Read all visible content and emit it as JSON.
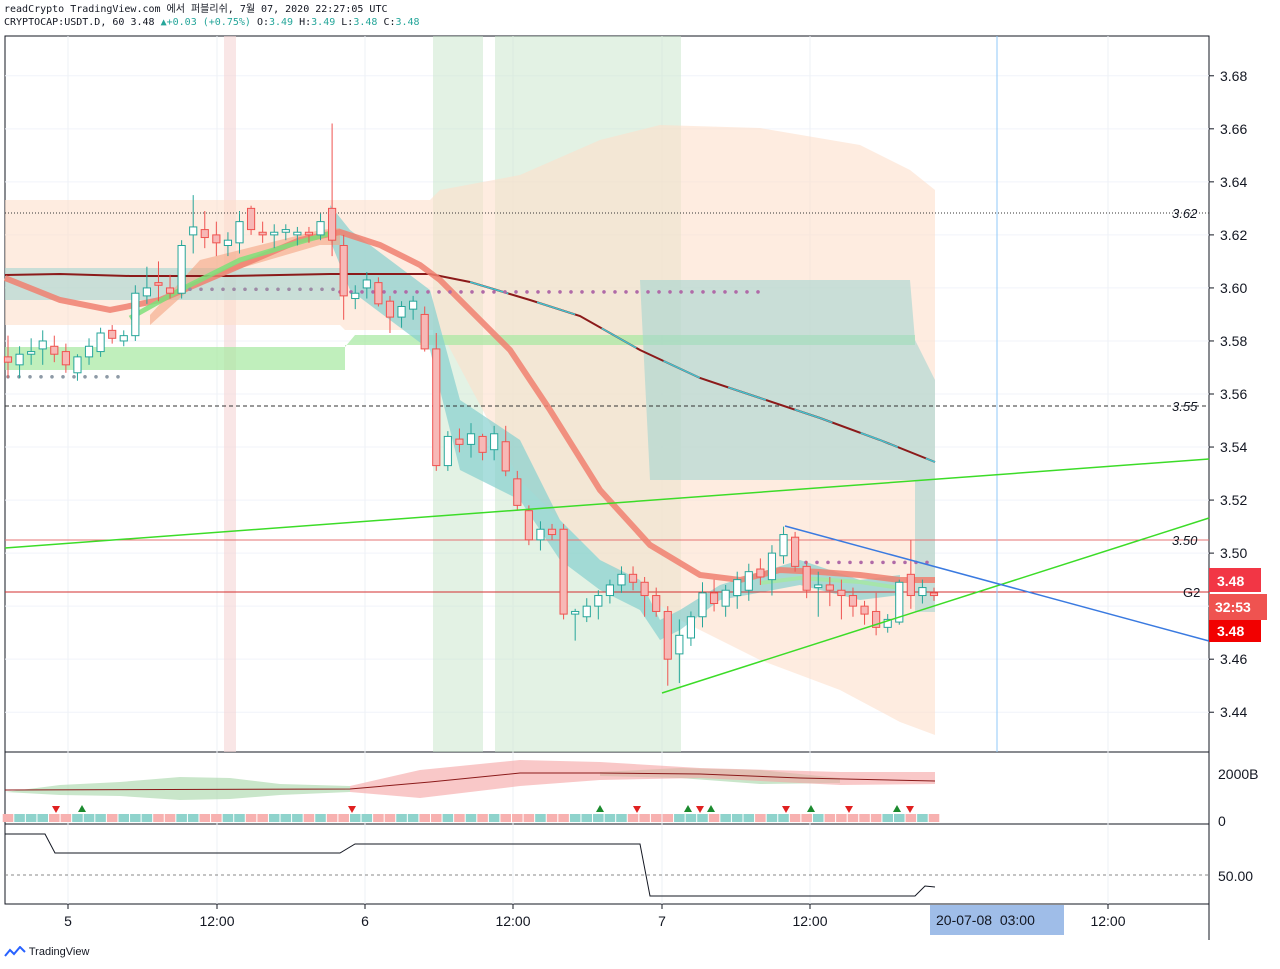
{
  "header": {
    "line1": "readCrypto TradingView.com 에서 퍼블리쉬, 7월 07, 2020 22:27:05 UTC",
    "symbol": "CRYPTOCAP:USDT.D, 60",
    "last": "3.48",
    "change": "+0.03 (+0.75%)",
    "o_label": "O:",
    "o": "3.49",
    "h_label": "H:",
    "h": "3.49",
    "l_label": "L:",
    "l": "3.48",
    "c_label": "C:",
    "c": "3.48"
  },
  "colors": {
    "up": "#26a69a",
    "down": "#ef5350",
    "tag_red": "#f23645",
    "trend_green": "#3cdc28",
    "trend_blue": "#3a7ae0",
    "time_highlight": "#9fbde8"
  },
  "chart_data": {
    "type": "candlestick",
    "price_axis": {
      "ylim": [
        3.425,
        3.695
      ],
      "ticks": [
        "3.68",
        "3.66",
        "3.64",
        "3.62",
        "3.60",
        "3.58",
        "3.56",
        "3.54",
        "3.52",
        "3.50",
        "3.48",
        "3.46",
        "3.44"
      ]
    },
    "time_axis": {
      "ticks": [
        "5",
        "12:00",
        "6",
        "12:00",
        "7",
        "12:00",
        "12:00"
      ],
      "highlight": "20-07-08  03:00"
    },
    "level_labels": {
      "l1": "3.62",
      "l2": "3.55",
      "l3": "3.50",
      "g2": "G2"
    },
    "price_tags": {
      "tag_top": "3.48",
      "countdown": "32:53",
      "tag_bottom": "3.48"
    },
    "candles": [
      [
        3.574,
        3.582,
        3.566,
        3.572
      ],
      [
        3.571,
        3.578,
        3.566,
        3.575
      ],
      [
        3.575,
        3.581,
        3.571,
        3.576
      ],
      [
        3.577,
        3.584,
        3.571,
        3.58
      ],
      [
        3.578,
        3.582,
        3.572,
        3.575
      ],
      [
        3.576,
        3.579,
        3.568,
        3.571
      ],
      [
        3.568,
        3.575,
        3.565,
        3.574
      ],
      [
        3.574,
        3.581,
        3.571,
        3.578
      ],
      [
        3.576,
        3.585,
        3.574,
        3.583
      ],
      [
        3.584,
        3.586,
        3.579,
        3.581
      ],
      [
        3.58,
        3.584,
        3.578,
        3.582
      ],
      [
        3.582,
        3.601,
        3.58,
        3.598
      ],
      [
        3.597,
        3.608,
        3.594,
        3.6
      ],
      [
        3.602,
        3.61,
        3.595,
        3.601
      ],
      [
        3.6,
        3.605,
        3.596,
        3.598
      ],
      [
        3.598,
        3.618,
        3.596,
        3.616
      ],
      [
        3.62,
        3.635,
        3.613,
        3.623
      ],
      [
        3.622,
        3.629,
        3.615,
        3.619
      ],
      [
        3.62,
        3.625,
        3.612,
        3.617
      ],
      [
        3.616,
        3.621,
        3.612,
        3.618
      ],
      [
        3.617,
        3.629,
        3.613,
        3.625
      ],
      [
        3.63,
        3.631,
        3.62,
        3.622
      ],
      [
        3.621,
        3.625,
        3.617,
        3.62
      ],
      [
        3.62,
        3.624,
        3.615,
        3.621
      ],
      [
        3.621,
        3.624,
        3.618,
        3.622
      ],
      [
        3.62,
        3.623,
        3.616,
        3.621
      ],
      [
        3.621,
        3.623,
        3.617,
        3.62
      ],
      [
        3.62,
        3.628,
        3.618,
        3.625
      ],
      [
        3.63,
        3.662,
        3.612,
        3.618
      ],
      [
        3.616,
        3.62,
        3.588,
        3.597
      ],
      [
        3.596,
        3.601,
        3.592,
        3.598
      ],
      [
        3.6,
        3.606,
        3.596,
        3.603
      ],
      [
        3.602,
        3.604,
        3.593,
        3.594
      ],
      [
        3.595,
        3.597,
        3.583,
        3.589
      ],
      [
        3.589,
        3.595,
        3.585,
        3.593
      ],
      [
        3.592,
        3.597,
        3.588,
        3.595
      ],
      [
        3.59,
        3.593,
        3.576,
        3.577
      ],
      [
        3.577,
        3.583,
        3.531,
        3.533
      ],
      [
        3.533,
        3.546,
        3.531,
        3.544
      ],
      [
        3.543,
        3.547,
        3.538,
        3.541
      ],
      [
        3.541,
        3.549,
        3.536,
        3.545
      ],
      [
        3.544,
        3.545,
        3.535,
        3.538
      ],
      [
        3.539,
        3.548,
        3.535,
        3.545
      ],
      [
        3.542,
        3.548,
        3.529,
        3.531
      ],
      [
        3.528,
        3.531,
        3.516,
        3.518
      ],
      [
        3.516,
        3.518,
        3.503,
        3.505
      ],
      [
        3.505,
        3.512,
        3.501,
        3.509
      ],
      [
        3.509,
        3.511,
        3.505,
        3.507
      ],
      [
        3.509,
        3.511,
        3.475,
        3.477
      ],
      [
        3.477,
        3.479,
        3.467,
        3.478
      ],
      [
        3.476,
        3.483,
        3.474,
        3.48
      ],
      [
        3.48,
        3.486,
        3.475,
        3.484
      ],
      [
        3.484,
        3.49,
        3.481,
        3.488
      ],
      [
        3.488,
        3.495,
        3.485,
        3.492
      ],
      [
        3.492,
        3.495,
        3.486,
        3.489
      ],
      [
        3.489,
        3.491,
        3.476,
        3.484
      ],
      [
        3.484,
        3.487,
        3.476,
        3.478
      ],
      [
        3.478,
        3.48,
        3.45,
        3.46
      ],
      [
        3.462,
        3.475,
        3.451,
        3.469
      ],
      [
        3.468,
        3.478,
        3.465,
        3.476
      ],
      [
        3.476,
        3.489,
        3.472,
        3.485
      ],
      [
        3.485,
        3.49,
        3.478,
        3.481
      ],
      [
        3.48,
        3.488,
        3.476,
        3.486
      ],
      [
        3.484,
        3.493,
        3.479,
        3.49
      ],
      [
        3.486,
        3.496,
        3.482,
        3.493
      ],
      [
        3.494,
        3.498,
        3.488,
        3.491
      ],
      [
        3.49,
        3.503,
        3.484,
        3.5
      ],
      [
        3.499,
        3.51,
        3.496,
        3.507
      ],
      [
        3.506,
        3.508,
        3.493,
        3.495
      ],
      [
        3.495,
        3.497,
        3.483,
        3.486
      ],
      [
        3.487,
        3.493,
        3.476,
        3.488
      ],
      [
        3.488,
        3.491,
        3.48,
        3.486
      ],
      [
        3.486,
        3.49,
        3.475,
        3.484
      ],
      [
        3.484,
        3.487,
        3.476,
        3.48
      ],
      [
        3.48,
        3.482,
        3.473,
        3.477
      ],
      [
        3.478,
        3.485,
        3.469,
        3.472
      ],
      [
        3.472,
        3.477,
        3.47,
        3.475
      ],
      [
        3.474,
        3.49,
        3.473,
        3.489
      ],
      [
        3.492,
        3.505,
        3.479,
        3.484
      ],
      [
        3.484,
        3.49,
        3.481,
        3.487
      ],
      [
        3.485,
        3.487,
        3.482,
        3.484
      ]
    ],
    "indicators": {
      "pane1_axis": {
        "ticks": [
          "2000B",
          "0"
        ]
      },
      "pane2_axis": {
        "ticks": [
          "50.00"
        ]
      }
    }
  },
  "footer": {
    "brand": "TradingView"
  }
}
